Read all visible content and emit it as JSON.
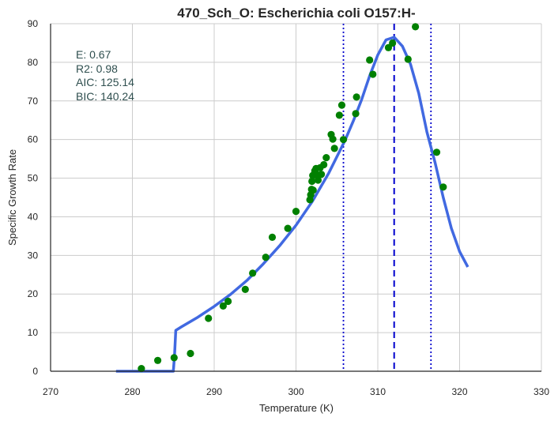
{
  "chart_data": {
    "type": "scatter",
    "title": "470_Sch_O: Escherichia coli O157:H-",
    "xlabel": "Temperature (K)",
    "ylabel": "Specific Growth Rate",
    "xlim": [
      270,
      330
    ],
    "ylim": [
      0,
      90
    ],
    "xticks": [
      270,
      280,
      290,
      300,
      310,
      320,
      330
    ],
    "yticks": [
      0,
      10,
      20,
      30,
      40,
      50,
      60,
      70,
      80,
      90
    ],
    "grid": true,
    "stats": [
      "E:  0.67",
      "R2:  0.98",
      "AIC: 125.14",
      "BIC: 140.24"
    ],
    "scatter": {
      "color": "#008000",
      "x": [
        281.1,
        283.1,
        285.1,
        287.1,
        289.3,
        291.1,
        291.7,
        293.8,
        294.7,
        296.3,
        297.1,
        299.0,
        300.0,
        301.7,
        301.8,
        301.9,
        301.95,
        302.05,
        302.1,
        302.3,
        302.45,
        302.55,
        302.7,
        302.95,
        303.1,
        303.4,
        303.7,
        304.3,
        304.5,
        304.7,
        305.3,
        305.6,
        305.8,
        307.3,
        307.4,
        309.0,
        309.4,
        311.3,
        311.8,
        313.7,
        314.6,
        317.2,
        318.0
      ],
      "y": [
        0.7,
        2.8,
        3.5,
        4.6,
        13.7,
        16.9,
        18.1,
        21.2,
        25.4,
        29.5,
        34.7,
        37.0,
        41.4,
        44.4,
        45.7,
        47.1,
        49.2,
        50.7,
        46.9,
        51.9,
        52.5,
        50.9,
        49.5,
        52.7,
        51.0,
        53.5,
        55.3,
        61.3,
        60.1,
        57.7,
        66.3,
        68.9,
        60.0,
        66.7,
        71.0,
        80.6,
        76.9,
        83.8,
        85.0,
        80.8,
        89.2,
        56.7,
        47.7
      ]
    },
    "fit": {
      "color": "#4169e1",
      "x": [
        278,
        285.0,
        285.15,
        285.3,
        286,
        288,
        290,
        292,
        294,
        296,
        298,
        300,
        302,
        304,
        306,
        307,
        308,
        309,
        310,
        311,
        312,
        313,
        314,
        315,
        316,
        317,
        318,
        319,
        320,
        321
      ],
      "y": [
        0,
        0,
        4,
        10.6,
        11.5,
        14.0,
        16.8,
        19.9,
        23.5,
        27.8,
        32.5,
        37.8,
        44.0,
        51.3,
        59.8,
        64.8,
        70.2,
        76.5,
        81.9,
        85.8,
        86.5,
        84.2,
        79.5,
        72.0,
        62.0,
        54.0,
        45.0,
        37.0,
        31.0,
        27.0
      ]
    },
    "vlines": [
      {
        "x": 305.8,
        "style": "dotted",
        "color": "#0000cd"
      },
      {
        "x": 312.0,
        "style": "dashed",
        "color": "#0000cd"
      },
      {
        "x": 316.5,
        "style": "dotted",
        "color": "#0000cd"
      }
    ]
  }
}
